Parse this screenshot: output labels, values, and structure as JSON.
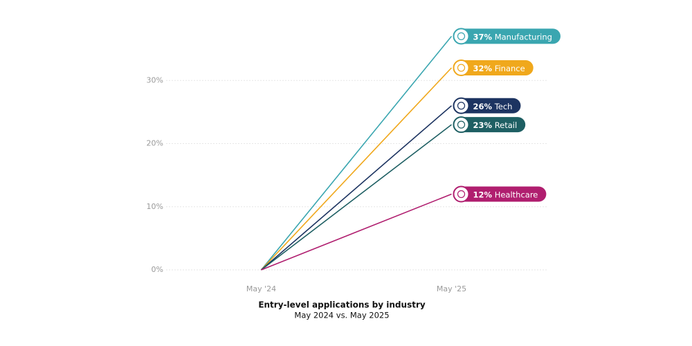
{
  "chart_data": {
    "type": "line",
    "title": "Entry-level applications by industry",
    "subtitle": "May 2024 vs. May 2025",
    "categories": [
      "May '24",
      "May '25"
    ],
    "series": [
      {
        "name": "Manufacturing",
        "color": "#3aa6b0",
        "values": [
          0,
          37
        ],
        "value_labels": [
          null,
          "37%"
        ]
      },
      {
        "name": "Finance",
        "color": "#f0a81c",
        "values": [
          0,
          32
        ],
        "value_labels": [
          null,
          "32%"
        ]
      },
      {
        "name": "Tech",
        "color": "#1d3461",
        "values": [
          0,
          26
        ],
        "value_labels": [
          null,
          "26%"
        ]
      },
      {
        "name": "Retail",
        "color": "#1e5f63",
        "values": [
          0,
          23
        ],
        "value_labels": [
          null,
          "23%"
        ]
      },
      {
        "name": "Healthcare",
        "color": "#b01e6f",
        "values": [
          0,
          12
        ],
        "value_labels": [
          null,
          "12%"
        ]
      }
    ],
    "ylim": [
      0,
      40
    ],
    "yticks": [
      {
        "value": 0,
        "label": "0%"
      },
      {
        "value": 10,
        "label": "10%"
      },
      {
        "value": 20,
        "label": "20%"
      },
      {
        "value": 30,
        "label": "30%"
      }
    ],
    "grid": true
  }
}
